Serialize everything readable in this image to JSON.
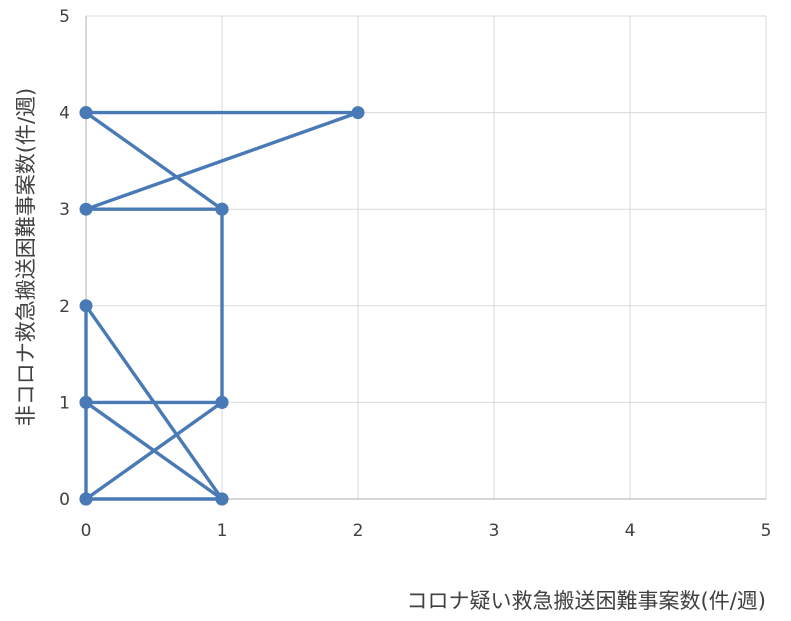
{
  "chart_data": {
    "type": "scatter",
    "mode": "lines+markers",
    "title": "",
    "xlabel": "コロナ疑い救急搬送困難事案数(件/週)",
    "ylabel": "非コロナ救急搬送困難事案数(件/週)",
    "xlim": [
      0,
      5
    ],
    "ylim": [
      0,
      5
    ],
    "xticks": [
      "0",
      "1",
      "2",
      "3",
      "4",
      "5"
    ],
    "yticks": [
      "0",
      "1",
      "2",
      "3",
      "4",
      "5"
    ],
    "grid": true,
    "legend": "none",
    "color": "#4a7ab5",
    "series": [
      {
        "x": [
          0,
          0,
          1,
          0,
          0,
          1,
          1,
          0,
          1,
          0,
          2,
          0,
          1,
          1,
          0,
          0,
          1
        ],
        "y": [
          0,
          1,
          0,
          2,
          0,
          1,
          3,
          4,
          3,
          4,
          4,
          3,
          3,
          1,
          1,
          0,
          0
        ]
      }
    ]
  }
}
